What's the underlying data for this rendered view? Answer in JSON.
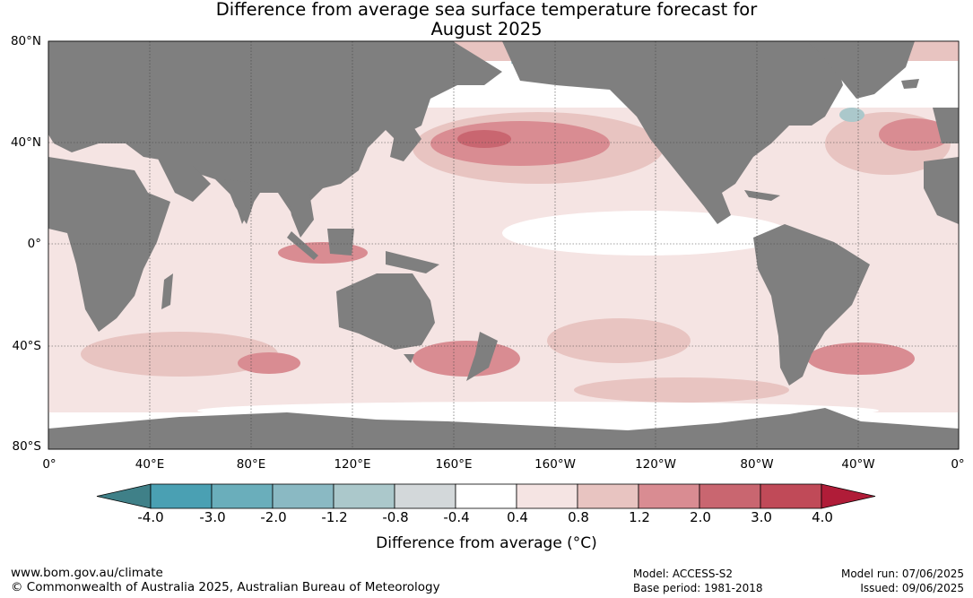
{
  "title_line1": "Difference from average sea surface temperature forecast for",
  "title_line2": "August 2025",
  "lat_labels": [
    "80°N",
    "40°N",
    "0°",
    "40°S",
    "80°S"
  ],
  "lon_labels": [
    "0°",
    "40°E",
    "80°E",
    "120°E",
    "160°E",
    "160°W",
    "120°W",
    "80°W",
    "40°W",
    "0°"
  ],
  "colorbar": {
    "ticks": [
      "-4.0",
      "-3.0",
      "-2.0",
      "-1.2",
      "-0.8",
      "-0.4",
      "0.4",
      "0.8",
      "1.2",
      "2.0",
      "3.0",
      "4.0"
    ],
    "colors": [
      "#4aa0b3",
      "#6aaebb",
      "#8ab9c3",
      "#abc8cb",
      "#d3d8da",
      "#ffffff",
      "#f5e4e3",
      "#e8c4c1",
      "#d98c92",
      "#c96670",
      "#c04a58"
    ],
    "low_color": "#3f8088",
    "high_color": "#b01c38",
    "label": "Difference from average (°C)"
  },
  "colors": {
    "land": "#7f7f7f",
    "ocean_neutral": "#ffffff"
  },
  "footer": {
    "website": "www.bom.gov.au/climate",
    "copyright": "© Commonwealth of Australia 2025, Australian Bureau of Meteorology",
    "model": "Model: ACCESS-S2",
    "base_period": "Base period: 1981-2018",
    "model_run": "Model run: 07/06/2025",
    "issued": "Issued: 09/06/2025"
  }
}
